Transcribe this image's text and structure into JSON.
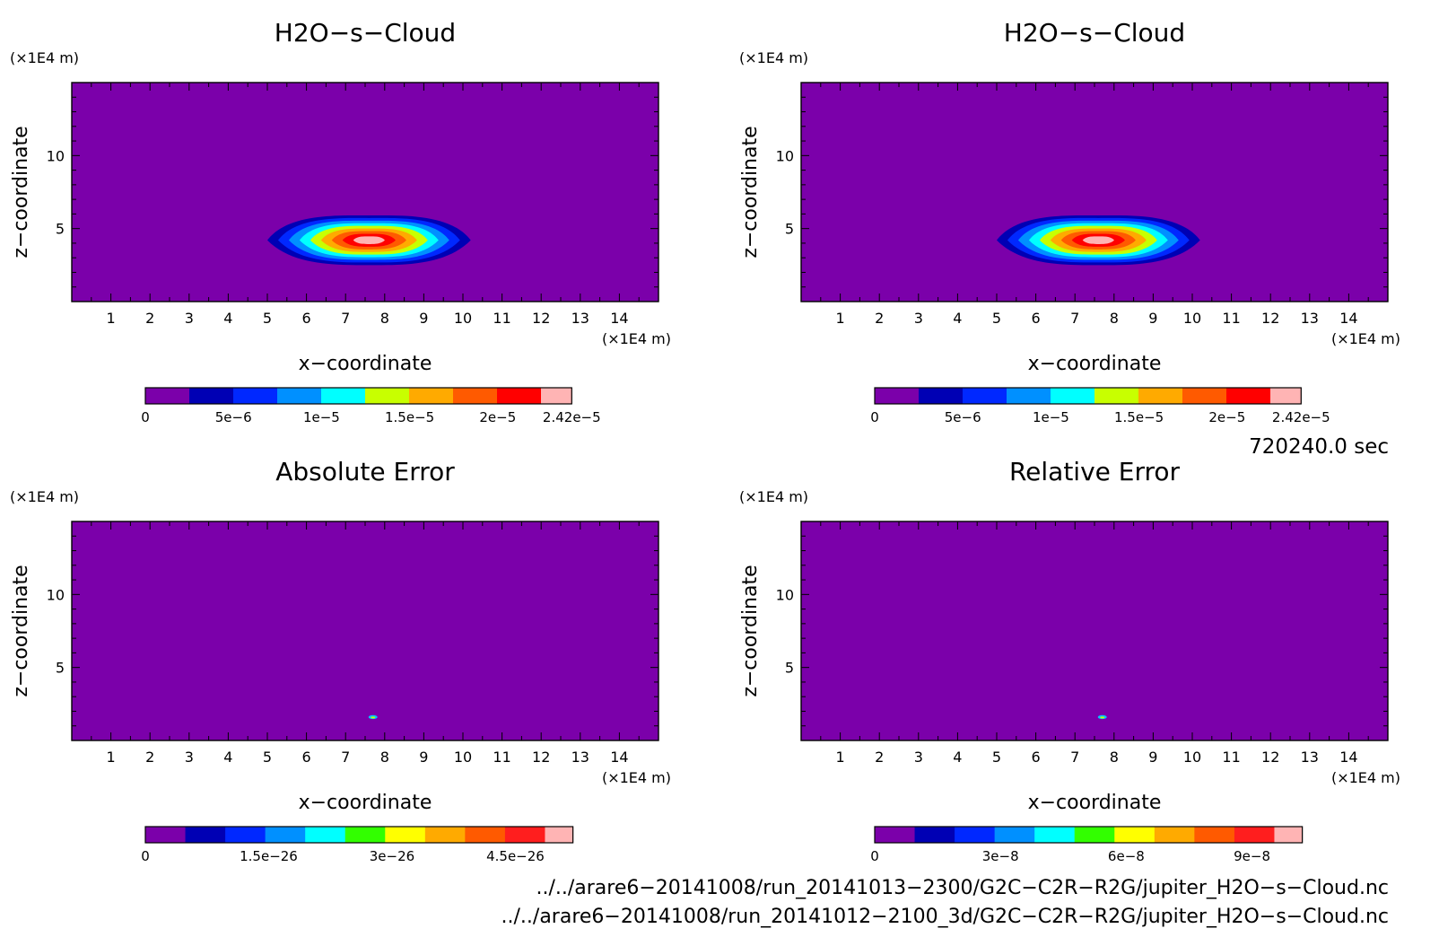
{
  "chart_data": [
    {
      "type": "heatmap",
      "title": "H2O−s−Cloud",
      "xlabel": "x−coordinate",
      "ylabel": "z−coordinate",
      "x_unit": "(×1E4 m)",
      "y_unit": "(×1E4 m)",
      "xlim": [
        0,
        15
      ],
      "ylim": [
        0,
        15
      ],
      "x_ticks": [
        "1",
        "2",
        "3",
        "4",
        "5",
        "6",
        "7",
        "8",
        "9",
        "10",
        "11",
        "12",
        "13",
        "14"
      ],
      "y_ticks": [
        "5",
        "10"
      ],
      "field": {
        "peak_value": 2.42e-05,
        "center_x": 7.6,
        "center_z": 4.2,
        "extent_x": [
          5.0,
          10.2
        ],
        "extent_z": [
          2.5,
          5.9
        ]
      },
      "colorbar": {
        "min": 0,
        "max": 2.42e-05,
        "colors": [
          "#7b00aa",
          "#0000b4",
          "#0028ff",
          "#0090ff",
          "#00ffff",
          "#c8ff00",
          "#ffaa00",
          "#ff5a00",
          "#ff0000",
          "#ffb4b4"
        ],
        "tick_labels": [
          {
            "value": 0,
            "label": "0"
          },
          {
            "value": 5e-06,
            "label": "5e−6"
          },
          {
            "value": 1e-05,
            "label": "1e−5"
          },
          {
            "value": 1.5e-05,
            "label": "1.5e−5"
          },
          {
            "value": 2e-05,
            "label": "2e−5"
          },
          {
            "value": 2.42e-05,
            "label": "2.42e−5"
          }
        ]
      }
    },
    {
      "type": "heatmap",
      "title": "H2O−s−Cloud",
      "xlabel": "x−coordinate",
      "ylabel": "z−coordinate",
      "x_unit": "(×1E4 m)",
      "y_unit": "(×1E4 m)",
      "xlim": [
        0,
        15
      ],
      "ylim": [
        0,
        15
      ],
      "x_ticks": [
        "1",
        "2",
        "3",
        "4",
        "5",
        "6",
        "7",
        "8",
        "9",
        "10",
        "11",
        "12",
        "13",
        "14"
      ],
      "y_ticks": [
        "5",
        "10"
      ],
      "field": {
        "peak_value": 2.42e-05,
        "center_x": 7.6,
        "center_z": 4.2,
        "extent_x": [
          5.0,
          10.2
        ],
        "extent_z": [
          2.5,
          5.9
        ]
      },
      "colorbar": {
        "min": 0,
        "max": 2.42e-05,
        "colors": [
          "#7b00aa",
          "#0000b4",
          "#0028ff",
          "#0090ff",
          "#00ffff",
          "#c8ff00",
          "#ffaa00",
          "#ff5a00",
          "#ff0000",
          "#ffb4b4"
        ],
        "tick_labels": [
          {
            "value": 0,
            "label": "0"
          },
          {
            "value": 5e-06,
            "label": "5e−6"
          },
          {
            "value": 1e-05,
            "label": "1e−5"
          },
          {
            "value": 1.5e-05,
            "label": "1.5e−5"
          },
          {
            "value": 2e-05,
            "label": "2e−5"
          },
          {
            "value": 2.42e-05,
            "label": "2.42e−5"
          }
        ]
      }
    },
    {
      "type": "heatmap",
      "title": "Absolute Error",
      "xlabel": "x−coordinate",
      "ylabel": "z−coordinate",
      "x_unit": "(×1E4 m)",
      "y_unit": "(×1E4 m)",
      "xlim": [
        0,
        15
      ],
      "ylim": [
        0,
        15
      ],
      "x_ticks": [
        "1",
        "2",
        "3",
        "4",
        "5",
        "6",
        "7",
        "8",
        "9",
        "10",
        "11",
        "12",
        "13",
        "14"
      ],
      "y_ticks": [
        "5",
        "10"
      ],
      "field": {
        "peak_value": 5.2e-26,
        "center_x": 7.7,
        "center_z": 1.6
      },
      "colorbar": {
        "min": 0,
        "max": 5.2e-26,
        "colors": [
          "#7b00aa",
          "#0000b4",
          "#0028ff",
          "#0090ff",
          "#00ffff",
          "#32ff00",
          "#ffff00",
          "#ffaa00",
          "#ff5a00",
          "#ff1e1e",
          "#ffb4b4"
        ],
        "tick_labels": [
          {
            "value": 0,
            "label": "0"
          },
          {
            "value": 1.5e-26,
            "label": "1.5e−26"
          },
          {
            "value": 3e-26,
            "label": "3e−26"
          },
          {
            "value": 4.5e-26,
            "label": "4.5e−26"
          }
        ]
      }
    },
    {
      "type": "heatmap",
      "title": "Relative Error",
      "xlabel": "x−coordinate",
      "ylabel": "z−coordinate",
      "x_unit": "(×1E4 m)",
      "y_unit": "(×1E4 m)",
      "xlim": [
        0,
        15
      ],
      "ylim": [
        0,
        15
      ],
      "x_ticks": [
        "1",
        "2",
        "3",
        "4",
        "5",
        "6",
        "7",
        "8",
        "9",
        "10",
        "11",
        "12",
        "13",
        "14"
      ],
      "y_ticks": [
        "5",
        "10"
      ],
      "field": {
        "peak_value": 1.02e-07,
        "center_x": 7.7,
        "center_z": 1.6
      },
      "colorbar": {
        "min": 0,
        "max": 1.02e-07,
        "colors": [
          "#7b00aa",
          "#0000b4",
          "#0028ff",
          "#0090ff",
          "#00ffff",
          "#32ff00",
          "#ffff00",
          "#ffaa00",
          "#ff5a00",
          "#ff1e1e",
          "#ffb4b4"
        ],
        "tick_labels": [
          {
            "value": 0,
            "label": "0"
          },
          {
            "value": 3e-08,
            "label": "3e−8"
          },
          {
            "value": 6e-08,
            "label": "6e−8"
          },
          {
            "value": 9e-08,
            "label": "9e−8"
          }
        ]
      }
    }
  ],
  "time_label": "720240.0 sec",
  "file_paths": [
    "../../arare6−20141008/run_20141013−2300/G2C−C2R−R2G/jupiter_H2O−s−Cloud.nc",
    "../../arare6−20141008/run_20141012−2100_3d/G2C−C2R−R2G/jupiter_H2O−s−Cloud.nc"
  ]
}
